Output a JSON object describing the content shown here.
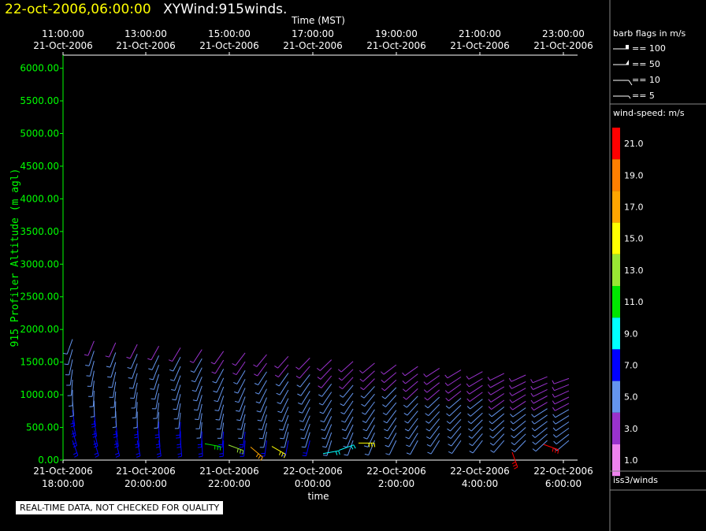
{
  "header": {
    "date_label": "22-oct-2006,06:00:00",
    "product_label": "XYWind:915winds."
  },
  "qc_note": "REAL-TIME DATA, NOT CHECKED FOR QUALITY",
  "chart_data": {
    "type": "wind-barb",
    "top_axis": {
      "title": "Time (MST)",
      "ticks": [
        {
          "time": "11:00:00",
          "date": "21-Oct-2006"
        },
        {
          "time": "13:00:00",
          "date": "21-Oct-2006"
        },
        {
          "time": "15:00:00",
          "date": "21-Oct-2006"
        },
        {
          "time": "17:00:00",
          "date": "21-Oct-2006"
        },
        {
          "time": "19:00:00",
          "date": "21-Oct-2006"
        },
        {
          "time": "21:00:00",
          "date": "21-Oct-2006"
        },
        {
          "time": "23:00:00",
          "date": "21-Oct-2006"
        }
      ]
    },
    "bottom_axis": {
      "title": "time",
      "ticks": [
        {
          "date": "21-Oct-2006",
          "time": "18:00:00"
        },
        {
          "date": "21-Oct-2006",
          "time": "20:00:00"
        },
        {
          "date": "21-Oct-2006",
          "time": "22:00:00"
        },
        {
          "date": "22-Oct-2006",
          "time": "0:00:00"
        },
        {
          "date": "22-Oct-2006",
          "time": "2:00:00"
        },
        {
          "date": "22-Oct-2006",
          "time": "4:00:00"
        },
        {
          "date": "22-Oct-2006",
          "time": "6:00:00"
        }
      ]
    },
    "y_axis": {
      "label": "915 Profiler Altitude (m agl)",
      "ylim": [
        0,
        6200
      ],
      "ticks": [
        "0.00",
        "500.00",
        "1000.00",
        "1500.00",
        "2000.00",
        "2500.00",
        "3000.00",
        "3500.00",
        "4000.00",
        "4500.00",
        "5000.00",
        "5500.00",
        "6000.00"
      ]
    },
    "barb_legend": {
      "title": "barb flags in m/s",
      "entries": [
        "== 100",
        "== 50",
        "== 10",
        "== 5"
      ]
    },
    "speed_legend": {
      "title": "wind-speed: m/s",
      "levels": [
        {
          "value": "21.0",
          "color": "#ff0000"
        },
        {
          "value": "19.0",
          "color": "#ff7f00"
        },
        {
          "value": "17.0",
          "color": "#ffa500"
        },
        {
          "value": "15.0",
          "color": "#ffff00"
        },
        {
          "value": "13.0",
          "color": "#99e633"
        },
        {
          "value": "11.0",
          "color": "#00e600"
        },
        {
          "value": "9.0",
          "color": "#00ffff"
        },
        {
          "value": "7.0",
          "color": "#0000ff"
        },
        {
          "value": "5.0",
          "color": "#6495ed"
        },
        {
          "value": "3.0",
          "color": "#9932cc"
        },
        {
          "value": "1.0",
          "color": "#ee82ee"
        }
      ]
    },
    "source_label": "iss3/winds",
    "profiles": [
      {
        "time": "21-Oct-2006 18:00",
        "top_m": 1800,
        "direction": "southerly, backing to north-westerly aloft"
      },
      {
        "time": "22-Oct-2006 00:00",
        "top_m": 1500,
        "direction": "north-westerly"
      },
      {
        "time": "22-Oct-2006 06:00",
        "top_m": 1400,
        "direction": "westerly"
      }
    ]
  }
}
